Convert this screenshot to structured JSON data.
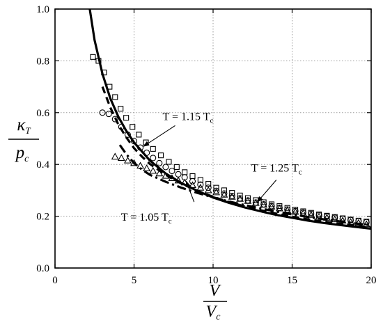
{
  "chart_data": {
    "type": "scatter",
    "title": "",
    "xlabel": {
      "numerator": "V",
      "denominator": "V",
      "denominator_sub": "c"
    },
    "ylabel": {
      "numerator": "κ",
      "numerator_sub": "T",
      "denominator": "p",
      "denominator_sub": "c"
    },
    "xlim": [
      0,
      20
    ],
    "ylim": [
      0,
      1.0
    ],
    "x_ticks": [
      0,
      5,
      10,
      15,
      20
    ],
    "y_ticks": [
      "0.0",
      "0.2",
      "0.4",
      "0.6",
      "0.8",
      "1.0"
    ],
    "grid": "dotted",
    "legend": "none",
    "colors": {
      "ink": "#000000",
      "grid": "#9a9a9a"
    },
    "series": [
      {
        "marker": "square",
        "line_style": "solid",
        "points": [
          [
            2.4,
            0.815
          ],
          [
            2.75,
            0.8
          ],
          [
            3.1,
            0.755
          ],
          [
            3.45,
            0.7
          ],
          [
            3.8,
            0.66
          ],
          [
            4.15,
            0.615
          ],
          [
            4.5,
            0.58
          ],
          [
            4.9,
            0.545
          ],
          [
            5.3,
            0.515
          ],
          [
            5.75,
            0.485
          ],
          [
            6.2,
            0.46
          ],
          [
            6.7,
            0.435
          ],
          [
            7.2,
            0.41
          ],
          [
            7.7,
            0.39
          ],
          [
            8.2,
            0.37
          ],
          [
            8.7,
            0.355
          ],
          [
            9.2,
            0.34
          ],
          [
            9.7,
            0.325
          ],
          [
            10.2,
            0.31
          ],
          [
            10.7,
            0.3
          ],
          [
            11.2,
            0.29
          ],
          [
            11.7,
            0.28
          ],
          [
            12.2,
            0.27
          ],
          [
            12.7,
            0.262
          ],
          [
            13.2,
            0.254
          ],
          [
            13.7,
            0.246
          ],
          [
            14.2,
            0.239
          ],
          [
            14.7,
            0.232
          ],
          [
            15.2,
            0.225
          ],
          [
            15.7,
            0.219
          ],
          [
            16.2,
            0.213
          ],
          [
            16.7,
            0.207
          ],
          [
            17.2,
            0.202
          ],
          [
            17.7,
            0.197
          ],
          [
            18.2,
            0.192
          ],
          [
            18.7,
            0.187
          ],
          [
            19.2,
            0.183
          ],
          [
            19.7,
            0.179
          ]
        ],
        "curve": [
          [
            2.2,
            1.0
          ],
          [
            2.5,
            0.88
          ],
          [
            3.0,
            0.75
          ],
          [
            3.5,
            0.655
          ],
          [
            4.0,
            0.585
          ],
          [
            4.5,
            0.53
          ],
          [
            5.0,
            0.485
          ],
          [
            6.0,
            0.415
          ],
          [
            7.0,
            0.365
          ],
          [
            8.0,
            0.328
          ],
          [
            9.0,
            0.298
          ],
          [
            10.0,
            0.272
          ],
          [
            11.0,
            0.252
          ],
          [
            12.0,
            0.234
          ],
          [
            13.0,
            0.219
          ],
          [
            14.0,
            0.205
          ],
          [
            15.0,
            0.194
          ],
          [
            16.0,
            0.183
          ],
          [
            17.0,
            0.174
          ],
          [
            18.0,
            0.166
          ],
          [
            19.0,
            0.159
          ],
          [
            20.0,
            0.152
          ]
        ]
      },
      {
        "marker": "circle",
        "line_style": "dashed",
        "points": [
          [
            3.0,
            0.6
          ],
          [
            3.4,
            0.595
          ],
          [
            3.8,
            0.575
          ],
          [
            4.2,
            0.545
          ],
          [
            4.6,
            0.515
          ],
          [
            5.0,
            0.49
          ],
          [
            5.4,
            0.465
          ],
          [
            5.8,
            0.445
          ],
          [
            6.2,
            0.425
          ],
          [
            6.6,
            0.405
          ],
          [
            7.0,
            0.39
          ],
          [
            7.4,
            0.375
          ],
          [
            7.8,
            0.362
          ],
          [
            8.2,
            0.35
          ],
          [
            8.7,
            0.335
          ],
          [
            9.2,
            0.322
          ],
          [
            9.7,
            0.31
          ],
          [
            10.2,
            0.298
          ],
          [
            10.7,
            0.288
          ],
          [
            11.2,
            0.278
          ],
          [
            11.7,
            0.269
          ],
          [
            12.2,
            0.261
          ],
          [
            12.7,
            0.253
          ],
          [
            13.2,
            0.246
          ],
          [
            13.7,
            0.239
          ],
          [
            14.2,
            0.232
          ],
          [
            14.7,
            0.226
          ],
          [
            15.2,
            0.22
          ],
          [
            15.7,
            0.214
          ],
          [
            16.2,
            0.209
          ],
          [
            16.7,
            0.204
          ],
          [
            17.2,
            0.199
          ],
          [
            17.7,
            0.194
          ],
          [
            18.2,
            0.19
          ],
          [
            18.7,
            0.185
          ],
          [
            19.2,
            0.181
          ],
          [
            19.7,
            0.177
          ]
        ],
        "curve": [
          [
            3.0,
            0.7
          ],
          [
            3.5,
            0.62
          ],
          [
            4.0,
            0.555
          ],
          [
            4.5,
            0.505
          ],
          [
            5.0,
            0.463
          ],
          [
            5.5,
            0.43
          ],
          [
            6.0,
            0.402
          ],
          [
            7.0,
            0.36
          ],
          [
            8.0,
            0.326
          ],
          [
            9.0,
            0.298
          ],
          [
            10.0,
            0.275
          ],
          [
            11.0,
            0.255
          ],
          [
            12.0,
            0.238
          ],
          [
            13.0,
            0.223
          ],
          [
            14.0,
            0.21
          ],
          [
            15.0,
            0.198
          ],
          [
            16.0,
            0.188
          ],
          [
            17.0,
            0.179
          ],
          [
            18.0,
            0.171
          ],
          [
            19.0,
            0.163
          ],
          [
            20.0,
            0.156
          ]
        ]
      },
      {
        "marker": "triangle",
        "line_style": "dashdot",
        "points": [
          [
            3.8,
            0.43
          ],
          [
            4.2,
            0.425
          ],
          [
            4.6,
            0.415
          ],
          [
            5.0,
            0.405
          ],
          [
            5.4,
            0.395
          ],
          [
            5.8,
            0.385
          ],
          [
            6.2,
            0.375
          ],
          [
            6.6,
            0.365
          ],
          [
            7.0,
            0.356
          ],
          [
            7.4,
            0.347
          ],
          [
            7.8,
            0.338
          ],
          [
            8.2,
            0.33
          ],
          [
            8.7,
            0.32
          ],
          [
            9.2,
            0.31
          ],
          [
            9.7,
            0.3
          ],
          [
            10.2,
            0.292
          ],
          [
            10.7,
            0.283
          ],
          [
            11.2,
            0.275
          ],
          [
            11.7,
            0.267
          ],
          [
            12.2,
            0.259
          ],
          [
            12.7,
            0.251
          ],
          [
            13.2,
            0.244
          ],
          [
            13.7,
            0.237
          ],
          [
            14.2,
            0.23
          ],
          [
            14.7,
            0.223
          ],
          [
            15.2,
            0.217
          ],
          [
            15.7,
            0.211
          ],
          [
            16.2,
            0.205
          ],
          [
            16.7,
            0.199
          ],
          [
            17.2,
            0.194
          ],
          [
            17.7,
            0.188
          ],
          [
            18.2,
            0.183
          ],
          [
            18.7,
            0.178
          ],
          [
            19.2,
            0.174
          ],
          [
            19.7,
            0.169
          ]
        ],
        "curve": [
          [
            4.1,
            0.475
          ],
          [
            4.5,
            0.44
          ],
          [
            5.0,
            0.405
          ],
          [
            5.5,
            0.38
          ],
          [
            6.0,
            0.36
          ],
          [
            7.0,
            0.333
          ],
          [
            8.0,
            0.31
          ],
          [
            9.0,
            0.29
          ],
          [
            10.0,
            0.273
          ],
          [
            11.0,
            0.257
          ],
          [
            12.0,
            0.243
          ],
          [
            13.0,
            0.23
          ],
          [
            14.0,
            0.218
          ],
          [
            15.0,
            0.207
          ],
          [
            16.0,
            0.197
          ],
          [
            17.0,
            0.188
          ],
          [
            18.0,
            0.18
          ],
          [
            19.0,
            0.172
          ],
          [
            20.0,
            0.165
          ]
        ]
      }
    ],
    "annotations": [
      {
        "text_main": "T = 1.15 T",
        "text_sub": "c",
        "arrow_from": [
          7.6,
          0.55
        ],
        "arrow_to": [
          5.6,
          0.47
        ]
      },
      {
        "text_main": "T = 1.25 T",
        "text_sub": "c",
        "arrow_from": [
          14.0,
          0.34
        ],
        "arrow_to": [
          12.8,
          0.255
        ]
      },
      {
        "text_main": "T = 1.05 T",
        "text_sub": "c",
        "arrow_from": [
          8.8,
          0.255
        ],
        "arrow_to": [
          8.3,
          0.335
        ]
      }
    ],
    "annotation_positions": [
      "mid-upper",
      "right",
      "lower"
    ]
  }
}
